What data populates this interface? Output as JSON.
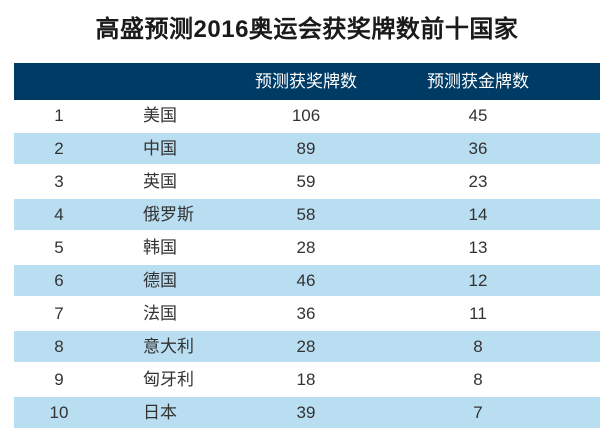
{
  "page": {
    "title": "高盛预测2016奥运会获奖牌数前十国家"
  },
  "table": {
    "headers": {
      "rank": "",
      "country": "",
      "medals": "预测获奖牌数",
      "golds": "预测获金牌数"
    },
    "rows": [
      {
        "rank": "1",
        "country": "美国",
        "medals": "106",
        "golds": "45"
      },
      {
        "rank": "2",
        "country": "中国",
        "medals": "89",
        "golds": "36"
      },
      {
        "rank": "3",
        "country": "英国",
        "medals": "59",
        "golds": "23"
      },
      {
        "rank": "4",
        "country": "俄罗斯",
        "medals": "58",
        "golds": "14"
      },
      {
        "rank": "5",
        "country": "韩国",
        "medals": "28",
        "golds": "13"
      },
      {
        "rank": "6",
        "country": "德国",
        "medals": "46",
        "golds": "12"
      },
      {
        "rank": "7",
        "country": "法国",
        "medals": "36",
        "golds": "11"
      },
      {
        "rank": "8",
        "country": "意大利",
        "medals": "28",
        "golds": "8"
      },
      {
        "rank": "9",
        "country": "匈牙利",
        "medals": "18",
        "golds": "8"
      },
      {
        "rank": "10",
        "country": "日本",
        "medals": "39",
        "golds": "7"
      }
    ]
  },
  "colors": {
    "header_bg": "#003b66",
    "header_text": "#ffffff",
    "alt_row_bg": "#b9def1",
    "row_bg": "#ffffff",
    "body_text": "#333333",
    "title_text": "#1a1a1a",
    "page_bg": "#ffffff"
  },
  "chart_data": {
    "type": "table",
    "title": "高盛预测2016奥运会获奖牌数前十国家",
    "columns": [
      "",
      "",
      "预测获奖牌数",
      "预测获金牌数"
    ],
    "rows": [
      [
        "1",
        "美国",
        106,
        45
      ],
      [
        "2",
        "中国",
        89,
        36
      ],
      [
        "3",
        "英国",
        59,
        23
      ],
      [
        "4",
        "俄罗斯",
        58,
        14
      ],
      [
        "5",
        "韩国",
        28,
        13
      ],
      [
        "6",
        "德国",
        46,
        12
      ],
      [
        "7",
        "法国",
        36,
        11
      ],
      [
        "8",
        "意大利",
        28,
        8
      ],
      [
        "9",
        "匈牙利",
        18,
        8
      ],
      [
        "10",
        "日本",
        39,
        7
      ]
    ],
    "layout": {
      "striped": true,
      "header_style": "navy background, white text",
      "alt_row_style": "light blue background"
    }
  }
}
